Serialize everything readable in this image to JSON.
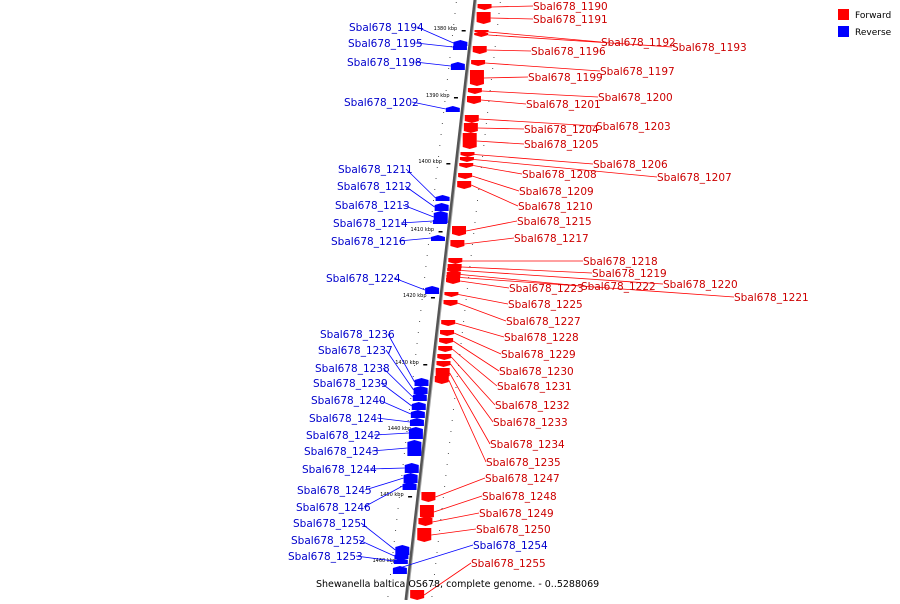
{
  "caption": "Shewanella baltica OS678, complete genome. - 0..5288069",
  "legend": [
    {
      "label": "Forward",
      "color": "#ff0000"
    },
    {
      "label": "Reverse",
      "color": "#0000ff"
    }
  ],
  "ticks": [
    "1380 kbp",
    "1390 kbp",
    "1400 kbp",
    "1410 kbp",
    "1420 kbp",
    "1430 kbp",
    "1440 kbp",
    "1450 kbp",
    "1460 kbp"
  ],
  "forward_labels": [
    "Sbal678_1190",
    "Sbal678_1191",
    "Sbal678_1192",
    "Sbal678_1193",
    "Sbal678_1196",
    "Sbal678_1197",
    "Sbal678_1199",
    "Sbal678_1200",
    "Sbal678_1201",
    "Sbal678_1203",
    "Sbal678_1204",
    "Sbal678_1205",
    "Sbal678_1206",
    "Sbal678_1207",
    "Sbal678_1208",
    "Sbal678_1209",
    "Sbal678_1210",
    "Sbal678_1215",
    "Sbal678_1217",
    "Sbal678_1218",
    "Sbal678_1219",
    "Sbal678_1220",
    "Sbal678_1222",
    "Sbal678_1221",
    "Sbal678_1223",
    "Sbal678_1225",
    "Sbal678_1227",
    "Sbal678_1228",
    "Sbal678_1229",
    "Sbal678_1230",
    "Sbal678_1231",
    "Sbal678_1232",
    "Sbal678_1233",
    "Sbal678_1234",
    "Sbal678_1235",
    "Sbal678_1247",
    "Sbal678_1248",
    "Sbal678_1249",
    "Sbal678_1250",
    "Sbal678_1255"
  ],
  "reverse_labels": [
    "Sbal678_1194",
    "Sbal678_1195",
    "Sbal678_1198",
    "Sbal678_1202",
    "Sbal678_1211",
    "Sbal678_1212",
    "Sbal678_1213",
    "Sbal678_1214",
    "Sbal678_1216",
    "Sbal678_1224",
    "Sbal678_1236",
    "Sbal678_1237",
    "Sbal678_1238",
    "Sbal678_1239",
    "Sbal678_1240",
    "Sbal678_1241",
    "Sbal678_1242",
    "Sbal678_1243",
    "Sbal678_1244",
    "Sbal678_1245",
    "Sbal678_1246",
    "Sbal678_1251",
    "Sbal678_1252",
    "Sbal678_1253",
    "Sbal678_1254"
  ]
}
